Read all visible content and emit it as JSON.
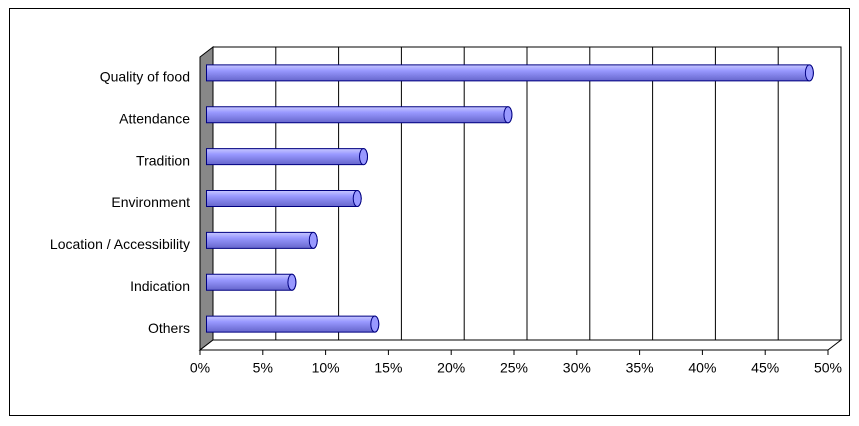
{
  "chart_data": {
    "type": "bar",
    "orientation": "horizontal",
    "categories": [
      "Quality of food",
      "Attendance",
      "Tradition",
      "Environment",
      "Location / Accessibility",
      "Indication",
      "Others"
    ],
    "values": [
      48,
      24,
      12.5,
      12,
      8.5,
      6.8,
      13.4
    ],
    "color": "#9999ff",
    "xlim": [
      0,
      50
    ],
    "xticks": [
      {
        "value": 0,
        "label": "0%"
      },
      {
        "value": 5,
        "label": "5%"
      },
      {
        "value": 10,
        "label": "10%"
      },
      {
        "value": 15,
        "label": "15%"
      },
      {
        "value": 20,
        "label": "20%"
      },
      {
        "value": 25,
        "label": "25%"
      },
      {
        "value": 30,
        "label": "30%"
      },
      {
        "value": 35,
        "label": "35%"
      },
      {
        "value": 40,
        "label": "40%"
      },
      {
        "value": 45,
        "label": "45%"
      },
      {
        "value": 50,
        "label": "50%"
      }
    ],
    "grid": true
  }
}
